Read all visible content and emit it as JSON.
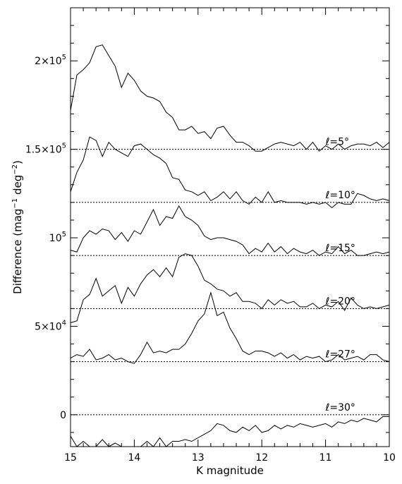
{
  "chart_data": {
    "type": "line",
    "title": "",
    "xlabel": "K magnitude",
    "ylabel": "Difference  (mag",
    "ylabel_unit": {
      "mag_exp": "−1",
      "deg": "deg",
      "deg_exp": "−2",
      "close": ")"
    },
    "xlim": [
      15,
      10
    ],
    "ylim": [
      -18000,
      230000
    ],
    "x_ticks": [
      15,
      14,
      13,
      12,
      11,
      10
    ],
    "y_tick_labels": [
      {
        "value": 0,
        "mantissa": "0",
        "exponent": ""
      },
      {
        "value": 50000,
        "mantissa": "5×10",
        "exponent": "4"
      },
      {
        "value": 100000,
        "mantissa": "10",
        "exponent": "5"
      },
      {
        "value": 150000,
        "mantissa": "1.5×10",
        "exponent": "5"
      },
      {
        "value": 200000,
        "mantissa": "2×10",
        "exponent": "5"
      }
    ],
    "series": [
      {
        "name": "ℓ=5°",
        "label_parts": {
          "l": "ℓ",
          "eq": "=5°"
        },
        "label_x": 11.0,
        "baseline": 150000,
        "x": [
          15.0,
          14.9,
          14.8,
          14.7,
          14.6,
          14.5,
          14.4,
          14.3,
          14.2,
          14.1,
          14.0,
          13.9,
          13.8,
          13.7,
          13.6,
          13.5,
          13.4,
          13.3,
          13.2,
          13.1,
          13.0,
          12.9,
          12.8,
          12.7,
          12.6,
          12.5,
          12.4,
          12.3,
          12.2,
          12.1,
          12.0,
          11.9,
          11.8,
          11.7,
          11.6,
          11.5,
          11.4,
          11.3,
          11.2,
          11.1,
          11.0,
          10.9,
          10.8,
          10.7,
          10.6,
          10.5,
          10.4,
          10.3,
          10.2,
          10.1,
          10.0
        ],
        "y": [
          172000,
          192000,
          195000,
          199000,
          208000,
          209000,
          203000,
          197000,
          185000,
          193000,
          189000,
          183000,
          180000,
          179000,
          177000,
          171000,
          168000,
          161000,
          161000,
          163000,
          159000,
          160000,
          156000,
          162000,
          163000,
          158000,
          154000,
          154000,
          152000,
          149000,
          149000,
          151000,
          153000,
          154000,
          153000,
          152000,
          154000,
          150000,
          154000,
          149000,
          152000,
          150000,
          153000,
          150000,
          152000,
          153000,
          153000,
          152000,
          154000,
          151000,
          154000
        ]
      },
      {
        "name": "ℓ=10°",
        "label_parts": {
          "l": "ℓ",
          "eq": "=10°"
        },
        "label_x": 11.0,
        "baseline": 120000,
        "x": [
          15.0,
          14.9,
          14.8,
          14.7,
          14.6,
          14.5,
          14.4,
          14.3,
          14.2,
          14.1,
          14.0,
          13.9,
          13.8,
          13.7,
          13.6,
          13.5,
          13.4,
          13.3,
          13.2,
          13.1,
          13.0,
          12.9,
          12.8,
          12.7,
          12.6,
          12.5,
          12.4,
          12.3,
          12.2,
          12.1,
          12.0,
          11.9,
          11.8,
          11.7,
          11.6,
          11.5,
          11.4,
          11.3,
          11.2,
          11.1,
          11.0,
          10.9,
          10.8,
          10.7,
          10.6,
          10.5,
          10.4,
          10.3,
          10.2,
          10.1,
          10.0
        ],
        "y": [
          126000,
          137000,
          144000,
          157000,
          155000,
          146000,
          154000,
          150000,
          148000,
          146000,
          152000,
          153000,
          150000,
          147000,
          145000,
          142000,
          134000,
          133000,
          127000,
          126000,
          124000,
          126000,
          121000,
          123000,
          126000,
          122000,
          126000,
          121000,
          119000,
          123000,
          120000,
          126000,
          120000,
          121000,
          120000,
          120000,
          120000,
          119000,
          120000,
          119000,
          120000,
          117000,
          120000,
          119000,
          119000,
          125000,
          124000,
          122000,
          121000,
          122000,
          121000
        ]
      },
      {
        "name": "ℓ=15°",
        "label_parts": {
          "l": "ℓ",
          "eq": "=15°"
        },
        "label_x": 11.0,
        "baseline": 90000,
        "x": [
          15.0,
          14.9,
          14.8,
          14.7,
          14.6,
          14.5,
          14.4,
          14.3,
          14.2,
          14.1,
          14.0,
          13.9,
          13.8,
          13.7,
          13.6,
          13.5,
          13.4,
          13.3,
          13.2,
          13.1,
          13.0,
          12.9,
          12.8,
          12.7,
          12.6,
          12.5,
          12.4,
          12.3,
          12.2,
          12.1,
          12.0,
          11.9,
          11.8,
          11.7,
          11.6,
          11.5,
          11.4,
          11.3,
          11.2,
          11.1,
          11.0,
          10.9,
          10.8,
          10.7,
          10.6,
          10.5,
          10.4,
          10.3,
          10.2,
          10.1,
          10.0
        ],
        "y": [
          93000,
          92000,
          100000,
          104000,
          102000,
          105000,
          104000,
          99000,
          103000,
          98000,
          104000,
          102000,
          109000,
          116000,
          107000,
          112000,
          111000,
          118000,
          112000,
          110000,
          107000,
          101000,
          99000,
          100000,
          100000,
          99000,
          98000,
          96000,
          91000,
          94000,
          92000,
          97000,
          92000,
          95000,
          91000,
          94000,
          92000,
          91000,
          93000,
          90000,
          92000,
          91000,
          95000,
          91000,
          93000,
          90000,
          90000,
          91000,
          92000,
          91000,
          92000
        ]
      },
      {
        "name": "ℓ=20°",
        "label_parts": {
          "l": "ℓ",
          "eq": "=20°"
        },
        "label_x": 11.0,
        "baseline": 60000,
        "x": [
          15.0,
          14.9,
          14.8,
          14.7,
          14.6,
          14.5,
          14.4,
          14.3,
          14.2,
          14.1,
          14.0,
          13.9,
          13.8,
          13.7,
          13.6,
          13.5,
          13.4,
          13.3,
          13.2,
          13.1,
          13.0,
          12.9,
          12.8,
          12.7,
          12.6,
          12.5,
          12.4,
          12.3,
          12.2,
          12.1,
          12.0,
          11.9,
          11.8,
          11.7,
          11.6,
          11.5,
          11.4,
          11.3,
          11.2,
          11.1,
          11.0,
          10.9,
          10.8,
          10.7,
          10.6,
          10.5,
          10.4,
          10.3,
          10.2,
          10.1,
          10.0
        ],
        "y": [
          52000,
          53000,
          65000,
          68000,
          77000,
          67000,
          70000,
          73000,
          63000,
          72000,
          67000,
          74000,
          79000,
          82000,
          78000,
          83000,
          78000,
          89000,
          91000,
          90000,
          84000,
          76000,
          74000,
          71000,
          70000,
          67000,
          69000,
          64000,
          64000,
          63000,
          60000,
          65000,
          62000,
          65000,
          63000,
          64000,
          61000,
          61000,
          63000,
          60000,
          62000,
          61000,
          64000,
          59000,
          66000,
          62000,
          60000,
          61000,
          60000,
          61000,
          62000
        ]
      },
      {
        "name": "ℓ=27°",
        "label_parts": {
          "l": "ℓ",
          "eq": "=27°"
        },
        "label_x": 11.0,
        "baseline": 30000,
        "x": [
          15.0,
          14.9,
          14.8,
          14.7,
          14.6,
          14.5,
          14.4,
          14.3,
          14.2,
          14.1,
          14.0,
          13.9,
          13.8,
          13.7,
          13.6,
          13.5,
          13.4,
          13.3,
          13.2,
          13.1,
          13.0,
          12.9,
          12.8,
          12.7,
          12.6,
          12.5,
          12.4,
          12.3,
          12.2,
          12.1,
          12.0,
          11.9,
          11.8,
          11.7,
          11.6,
          11.5,
          11.4,
          11.3,
          11.2,
          11.1,
          11.0,
          10.9,
          10.8,
          10.7,
          10.6,
          10.5,
          10.4,
          10.3,
          10.2,
          10.1,
          10.0
        ],
        "y": [
          32000,
          34000,
          33000,
          37000,
          31000,
          32000,
          34000,
          31000,
          32000,
          30000,
          29000,
          34000,
          41000,
          35000,
          36000,
          35000,
          37000,
          37000,
          40000,
          46000,
          53000,
          57000,
          69000,
          56000,
          58000,
          49000,
          43000,
          36000,
          34000,
          36000,
          36000,
          35000,
          33000,
          35000,
          32000,
          34000,
          31000,
          33000,
          32000,
          33000,
          30000,
          31000,
          34000,
          31000,
          32000,
          33000,
          31000,
          34000,
          34000,
          31000,
          30000
        ]
      },
      {
        "name": "ℓ=30°",
        "label_parts": {
          "l": "ℓ",
          "eq": "=30°"
        },
        "label_x": 11.0,
        "baseline": 0,
        "x": [
          15.0,
          14.9,
          14.8,
          14.7,
          14.6,
          14.5,
          14.4,
          14.3,
          14.2,
          14.1,
          14.0,
          13.9,
          13.8,
          13.7,
          13.6,
          13.5,
          13.4,
          13.3,
          13.2,
          13.1,
          13.0,
          12.9,
          12.8,
          12.7,
          12.6,
          12.5,
          12.4,
          12.3,
          12.2,
          12.1,
          12.0,
          11.9,
          11.8,
          11.7,
          11.6,
          11.5,
          11.4,
          11.3,
          11.2,
          11.1,
          11.0,
          10.9,
          10.8,
          10.7,
          10.6,
          10.5,
          10.4,
          10.3,
          10.2,
          10.1,
          10.0
        ],
        "y": [
          -12000,
          -19000,
          -15000,
          -20000,
          -19000,
          -14000,
          -20000,
          -16000,
          -19000,
          -19000,
          -20000,
          -18000,
          -15000,
          -18000,
          -13000,
          -20000,
          -15000,
          -15000,
          -14000,
          -15000,
          -13000,
          -11000,
          -9000,
          -5000,
          -6000,
          -9000,
          -10000,
          -7000,
          -9000,
          -6000,
          -10000,
          -9000,
          -6000,
          -8000,
          -6000,
          -7000,
          -5000,
          -6000,
          -7000,
          -6000,
          -5000,
          -7000,
          -4000,
          -5000,
          -3000,
          -4000,
          -2000,
          -3000,
          -4000,
          -1000,
          -1000
        ]
      }
    ]
  }
}
